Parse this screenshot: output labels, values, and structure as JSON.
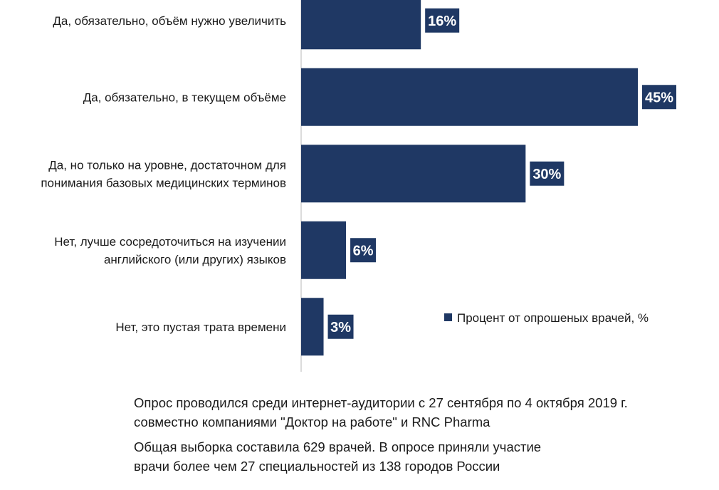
{
  "chart_data": {
    "type": "bar",
    "orientation": "horizontal",
    "categories": [
      [
        "Да, обязательно, объём нужно увеличить"
      ],
      [
        "Да, обязательно, в текущем объёме"
      ],
      [
        "Да, но только на уровне, достаточном для",
        "понимания базовых медицинских терминов"
      ],
      [
        "Нет, лучше сосредоточиться на изучении",
        "английского (или других) языков"
      ],
      [
        "Нет, это пустая трата времени"
      ]
    ],
    "series": [
      {
        "name": "Процент от опрошеных врачей, %",
        "values": [
          16,
          45,
          30,
          6,
          3
        ],
        "labels": [
          "16%",
          "45%",
          "30%",
          "6%",
          "3%"
        ],
        "color": "#1f3864"
      }
    ],
    "xlim": [
      0,
      45
    ],
    "grid": false,
    "legend_position": "right"
  },
  "notes": [
    {
      "line1": "Опрос проводился среди интернет-аудитории  с 27 сентября по 4 октября 2019 г.",
      "line2": "совместно компаниями \"Доктор на работе\" и RNC Pharma"
    },
    {
      "line1": "Общая выборка составила 629 врачей. В опросе приняли участие",
      "line2": "врачи более чем 27 специальностей из 138 городов России"
    }
  ]
}
